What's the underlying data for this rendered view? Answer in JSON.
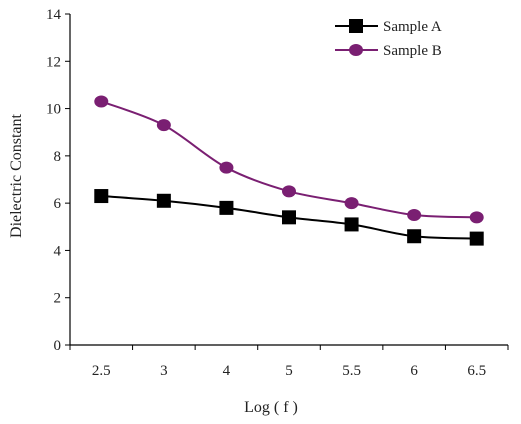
{
  "chart_data": {
    "type": "line",
    "title": "",
    "xlabel": "Log ( f )",
    "ylabel": "Dielectric Constant",
    "categories": [
      "2.5",
      "3",
      "4",
      "5",
      "5.5",
      "6",
      "6.5"
    ],
    "ylim": [
      0,
      14
    ],
    "yticks": [
      0,
      2,
      4,
      6,
      8,
      10,
      12,
      14
    ],
    "grid": false,
    "legend_position": "top-right",
    "series": [
      {
        "name": "Sample A",
        "marker": "square",
        "color": "#000000",
        "values": [
          6.3,
          6.1,
          5.8,
          5.4,
          5.1,
          4.6,
          4.5
        ]
      },
      {
        "name": "Sample B",
        "marker": "circle",
        "color": "#7a1f72",
        "values": [
          10.3,
          9.3,
          7.5,
          6.5,
          6.0,
          5.5,
          5.4
        ]
      }
    ]
  }
}
